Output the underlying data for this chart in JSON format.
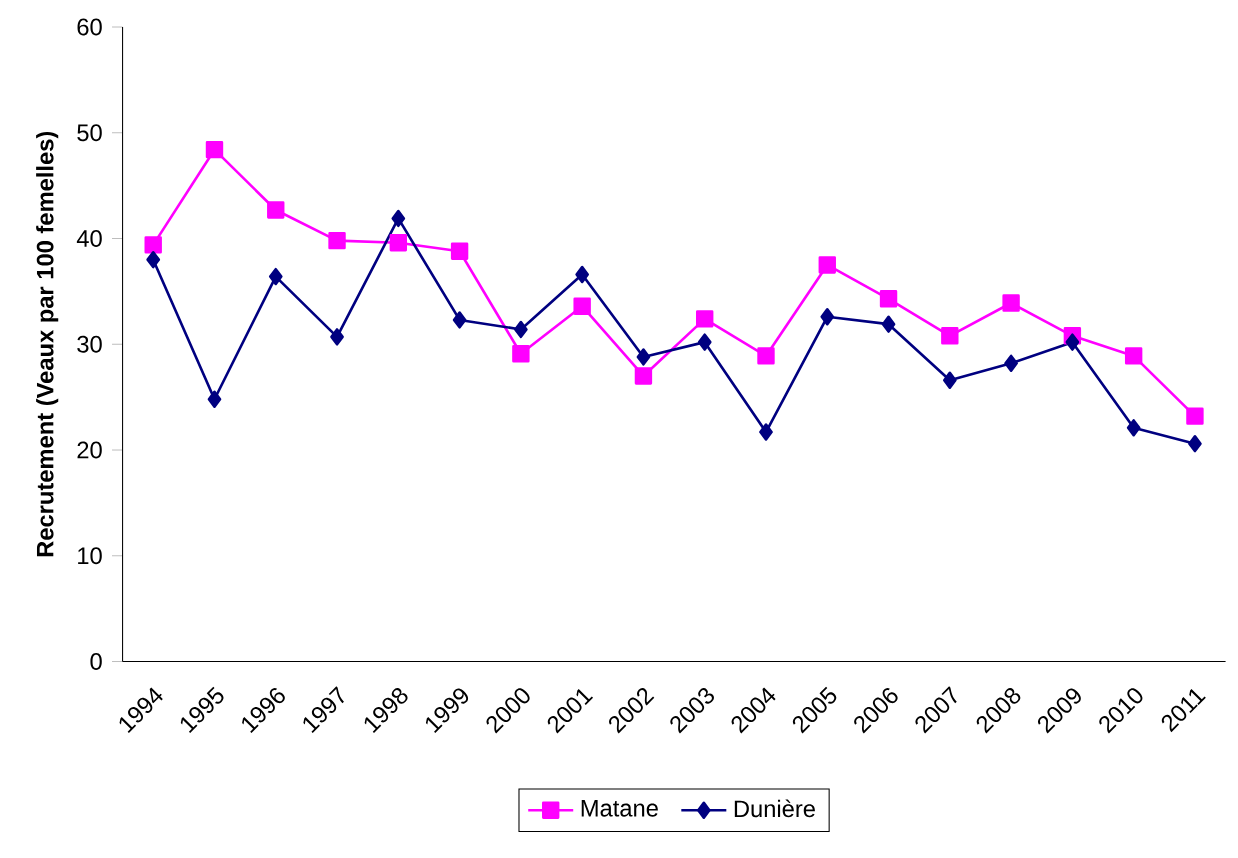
{
  "chart_data": {
    "type": "line",
    "ylabel": "Recrutement (Veaux par 100 femelles)",
    "categories": [
      "1994",
      "1995",
      "1996",
      "1997",
      "1998",
      "1999",
      "2000",
      "2001",
      "2002",
      "2003",
      "2004",
      "2005",
      "2006",
      "2007",
      "2008",
      "2009",
      "2010",
      "2011"
    ],
    "series": [
      {
        "name": "Matane",
        "color": "#ff00ff",
        "marker": "square",
        "values": [
          39.4,
          48.4,
          42.7,
          39.8,
          39.6,
          38.8,
          29.1,
          33.6,
          27.0,
          32.4,
          28.9,
          37.5,
          34.3,
          30.8,
          33.9,
          30.8,
          28.9,
          23.2
        ]
      },
      {
        "name": "Dunière",
        "color": "#000080",
        "marker": "diamond",
        "values": [
          38.0,
          24.8,
          36.4,
          30.7,
          41.9,
          32.3,
          31.4,
          36.6,
          28.8,
          30.2,
          21.7,
          32.6,
          31.9,
          26.6,
          28.2,
          30.2,
          22.1,
          20.6
        ]
      }
    ],
    "ylim": [
      0,
      60
    ],
    "yticks": [
      0,
      10,
      20,
      30,
      40,
      50,
      60
    ],
    "legend": "bottom",
    "line_style": "solid"
  }
}
